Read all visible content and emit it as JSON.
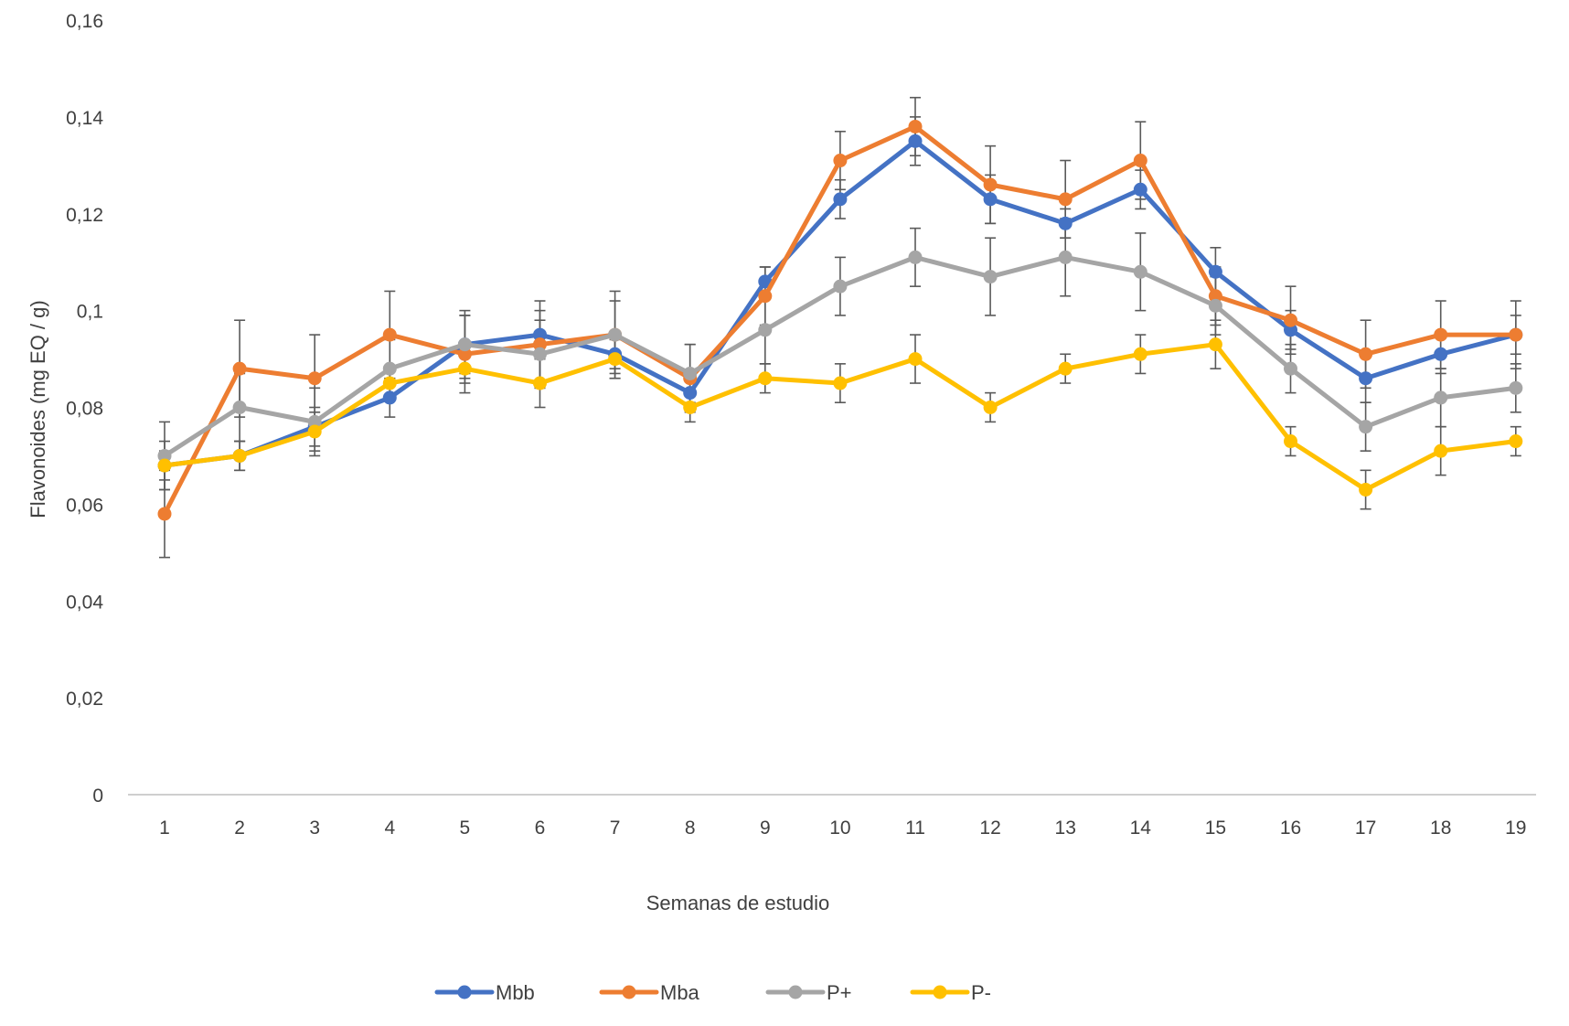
{
  "chart_data": {
    "type": "line",
    "title": "",
    "xlabel": "Semanas de estudio",
    "ylabel": "Flavonoides (mg EQ / g)",
    "categories": [
      "1",
      "2",
      "3",
      "4",
      "5",
      "6",
      "7",
      "8",
      "9",
      "10",
      "11",
      "12",
      "13",
      "14",
      "15",
      "16",
      "17",
      "18",
      "19"
    ],
    "y_ticks": [
      "0",
      "0,02",
      "0,04",
      "0,06",
      "0,08",
      "0,1",
      "0,12",
      "0,14",
      "0,16"
    ],
    "ylim": [
      0,
      0.16
    ],
    "grid": false,
    "legend_position": "bottom",
    "error_bars": true,
    "series": [
      {
        "name": "Mbb",
        "color": "#4472C4",
        "values": [
          0.068,
          0.07,
          0.076,
          0.082,
          0.093,
          0.095,
          0.091,
          0.083,
          0.106,
          0.123,
          0.135,
          0.123,
          0.118,
          0.125,
          0.108,
          0.096,
          0.086,
          0.091,
          0.095
        ],
        "errors": [
          0.005,
          0.003,
          0.004,
          0.004,
          0.006,
          0.005,
          0.004,
          0.003,
          0.003,
          0.004,
          0.005,
          0.005,
          0.003,
          0.004,
          0.005,
          0.004,
          0.005,
          0.004,
          0.004
        ]
      },
      {
        "name": "Mba",
        "color": "#ED7D31",
        "values": [
          0.058,
          0.088,
          0.086,
          0.095,
          0.091,
          0.093,
          0.095,
          0.086,
          0.103,
          0.131,
          0.138,
          0.126,
          0.123,
          0.131,
          0.103,
          0.098,
          0.091,
          0.095,
          0.095
        ],
        "errors": [
          0.009,
          0.01,
          0.009,
          0.009,
          0.008,
          0.009,
          0.009,
          0.007,
          0.006,
          0.006,
          0.006,
          0.008,
          0.008,
          0.008,
          0.006,
          0.007,
          0.007,
          0.007,
          0.007
        ]
      },
      {
        "name": "P+",
        "color": "#A5A5A5",
        "values": [
          0.07,
          0.08,
          0.077,
          0.088,
          0.093,
          0.091,
          0.095,
          0.087,
          0.096,
          0.105,
          0.111,
          0.107,
          0.111,
          0.108,
          0.101,
          0.088,
          0.076,
          0.082,
          0.084
        ],
        "errors": [
          0.007,
          0.007,
          0.007,
          0.006,
          0.007,
          0.007,
          0.007,
          0.006,
          0.007,
          0.006,
          0.006,
          0.008,
          0.008,
          0.008,
          0.006,
          0.005,
          0.005,
          0.006,
          0.005
        ]
      },
      {
        "name": "P-",
        "color": "#FFC000",
        "values": [
          0.068,
          0.07,
          0.075,
          0.085,
          0.088,
          0.085,
          0.09,
          0.08,
          0.086,
          0.085,
          0.09,
          0.08,
          0.088,
          0.091,
          0.093,
          0.073,
          0.063,
          0.071,
          0.073
        ],
        "errors": [
          0.003,
          0.003,
          0.004,
          0.003,
          0.003,
          0.005,
          0.004,
          0.003,
          0.003,
          0.004,
          0.005,
          0.003,
          0.003,
          0.004,
          0.005,
          0.003,
          0.004,
          0.005,
          0.003
        ]
      }
    ]
  }
}
